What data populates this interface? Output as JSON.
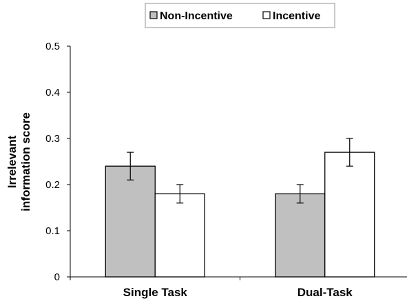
{
  "chart_data": {
    "type": "bar",
    "title": "",
    "xlabel": "",
    "ylabel": [
      "Irrelevant",
      "information score"
    ],
    "ylim": [
      0,
      0.5
    ],
    "yticks": [
      0,
      0.1,
      0.2,
      0.3,
      0.4,
      0.5
    ],
    "ytick_labels": [
      "0",
      "0.1",
      "0.2",
      "0.3",
      "0.4",
      "0.5"
    ],
    "categories": [
      "Single Task",
      "Dual-Task"
    ],
    "series": [
      {
        "name": "Non-Incentive",
        "color": "#c0c0c0",
        "values": [
          0.24,
          0.18
        ],
        "error": [
          0.03,
          0.02
        ]
      },
      {
        "name": "Incentive",
        "color": "#ffffff",
        "values": [
          0.18,
          0.27
        ],
        "error": [
          0.02,
          0.03
        ]
      }
    ],
    "legend_position": "top-center",
    "grid": false,
    "error_bars": true
  }
}
